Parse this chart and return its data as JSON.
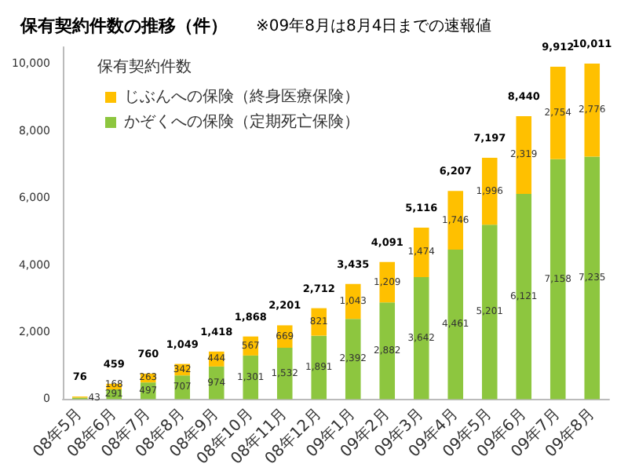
{
  "chart_data": {
    "type": "bar",
    "title": "保有契約件数の推移（件）",
    "subtitle": "※09年8月は8月4日までの速報値",
    "legend_title": "保有契約件数",
    "categories": [
      "08年5月",
      "08年6月",
      "08年7月",
      "08年8月",
      "08年9月",
      "08年10月",
      "08年11月",
      "08年12月",
      "09年1月",
      "09年2月",
      "09年3月",
      "09年4月",
      "09年5月",
      "09年6月",
      "09年7月",
      "09年8月"
    ],
    "series": [
      {
        "name": "かぞくへの保険（定期死亡保険）",
        "color": "#8dc63f",
        "values": [
          43,
          291,
          497,
          707,
          974,
          1301,
          1532,
          1891,
          2392,
          2882,
          3642,
          4461,
          5201,
          6121,
          7158,
          7235
        ],
        "value_labels": [
          "43",
          "291",
          "497",
          "707",
          "974",
          "1,301",
          "1,532",
          "1,891",
          "2,392",
          "2,882",
          "3,642",
          "4,461",
          "5,201",
          "6,121",
          "7,158",
          "7,235"
        ]
      },
      {
        "name": "じぶんへの保険（終身医療保険）",
        "color": "#ffc000",
        "values": [
          33,
          168,
          263,
          342,
          444,
          567,
          669,
          821,
          1043,
          1209,
          1474,
          1746,
          1996,
          2319,
          2754,
          2776
        ],
        "value_labels": [
          null,
          "168",
          "263",
          "342",
          "444",
          "567",
          "669",
          "821",
          "1,043",
          "1,209",
          "1,474",
          "1,746",
          "1,996",
          "2,319",
          "2,754",
          "2,776"
        ]
      }
    ],
    "stacked": true,
    "totals": [
      "76",
      "459",
      "760",
      "1,049",
      "1,418",
      "1,868",
      "2,201",
      "2,712",
      "3,435",
      "4,091",
      "5,116",
      "6,207",
      "7,197",
      "8,440",
      "9,912",
      "10,011"
    ],
    "ylim": [
      0,
      10500
    ],
    "yticks": [
      0,
      {
        "value": 2000,
        "label": "2,000"
      },
      {
        "value": 4000,
        "label": "4,000"
      },
      {
        "value": 6000,
        "label": "6,000"
      },
      {
        "value": 8000,
        "label": "8,000"
      },
      {
        "value": 10000,
        "label": "10,000"
      }
    ],
    "grid": false,
    "legend": "top left"
  }
}
